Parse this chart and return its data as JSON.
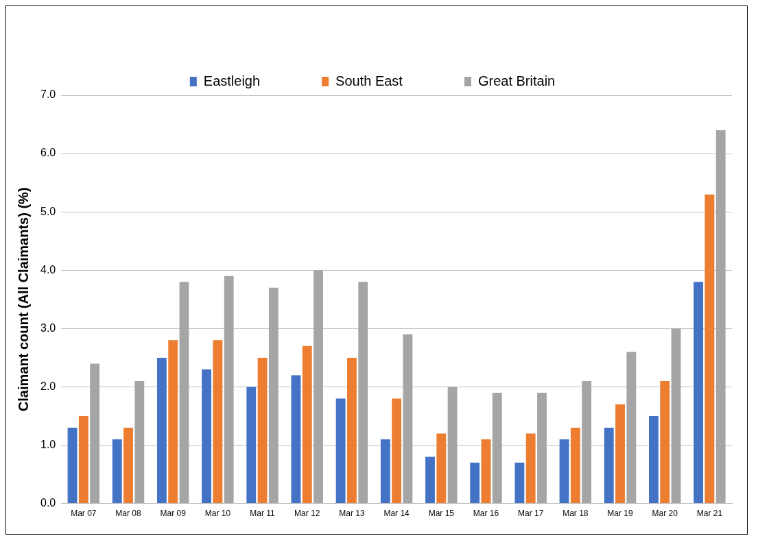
{
  "chart_data": {
    "type": "bar",
    "ylabel": "Claimant count (All Claimants) (%)",
    "categories": [
      "Mar 07",
      "Mar 08",
      "Mar 09",
      "Mar 10",
      "Mar 11",
      "Mar 12",
      "Mar 13",
      "Mar 14",
      "Mar 15",
      "Mar 16",
      "Mar 17",
      "Mar 18",
      "Mar 19",
      "Mar 20",
      "Mar 21"
    ],
    "series": [
      {
        "name": "Eastleigh",
        "color": "#4472c4",
        "values": [
          1.3,
          1.1,
          2.5,
          2.3,
          2.0,
          2.2,
          1.8,
          1.1,
          0.8,
          0.7,
          0.7,
          1.1,
          1.3,
          1.5,
          3.8
        ]
      },
      {
        "name": "South East",
        "color": "#ed7d31",
        "values": [
          1.5,
          1.3,
          2.8,
          2.8,
          2.5,
          2.7,
          2.5,
          1.8,
          1.2,
          1.1,
          1.2,
          1.3,
          1.7,
          2.1,
          5.3
        ]
      },
      {
        "name": "Great Britain",
        "color": "#a5a5a5",
        "values": [
          2.4,
          2.1,
          3.8,
          3.9,
          3.7,
          4.0,
          3.8,
          2.9,
          2.0,
          1.9,
          1.9,
          2.1,
          2.6,
          3.0,
          6.4
        ]
      }
    ],
    "ylim": [
      0,
      7
    ],
    "yticks": [
      {
        "value": 0,
        "label": "0.0"
      },
      {
        "value": 1,
        "label": "1.0"
      },
      {
        "value": 2,
        "label": "2.0"
      },
      {
        "value": 3,
        "label": "3.0"
      },
      {
        "value": 4,
        "label": "4.0"
      },
      {
        "value": 5,
        "label": "5.0"
      },
      {
        "value": 6,
        "label": "6.0"
      },
      {
        "value": 7,
        "label": "7.0"
      }
    ],
    "grid": "y",
    "legend": "top"
  }
}
